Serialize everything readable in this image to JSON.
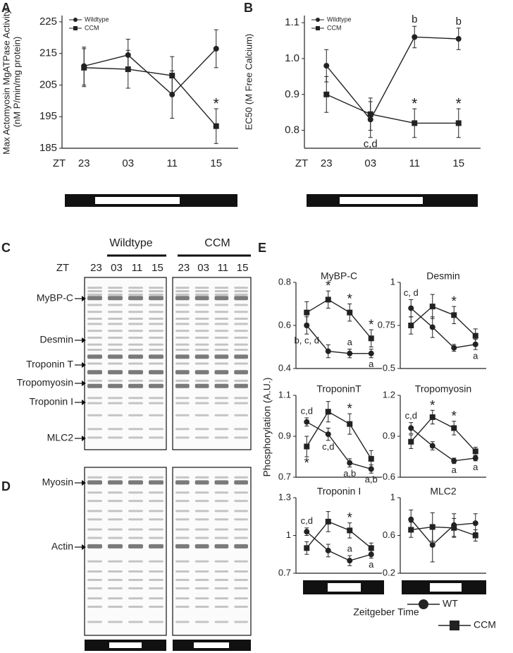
{
  "chart_data": [
    {
      "type": "line",
      "panel": "A",
      "ylabel": [
        "Max Actomyosin MgATPase Activity",
        "(nM P/min/mg protein)"
      ],
      "xlabel": "ZT",
      "categories": [
        "23",
        "03",
        "11",
        "15"
      ],
      "color": "#222222",
      "ylim": [
        185,
        227
      ],
      "yticks": [
        185,
        195,
        205,
        215,
        225
      ],
      "series": [
        {
          "name": "Wildtype",
          "marker": "circle",
          "values": [
            211,
            214.5,
            202,
            216.5
          ],
          "errors": [
            6,
            5,
            7.5,
            6
          ]
        },
        {
          "name": "CCM",
          "marker": "square",
          "values": [
            210.5,
            210,
            208,
            192
          ],
          "errors": [
            6,
            6,
            6,
            5.5
          ]
        }
      ],
      "annotations": [
        {
          "text": "*",
          "series": 1,
          "index": 3,
          "side": "above"
        }
      ]
    },
    {
      "type": "line",
      "panel": "B",
      "ylabel": [
        "EC50 (M Free Calcium)"
      ],
      "xlabel": "ZT",
      "categories": [
        "23",
        "03",
        "11",
        "15"
      ],
      "color": "#222222",
      "ylim": [
        0.75,
        1.12
      ],
      "yticks": [
        0.8,
        0.9,
        {
          "value": 1.0,
          "label": "1.0"
        },
        1.1
      ],
      "series": [
        {
          "name": "Wildtype",
          "marker": "circle",
          "values": [
            0.98,
            0.83,
            1.06,
            1.055
          ],
          "errors": [
            0.045,
            0.05,
            0.03,
            0.03
          ]
        },
        {
          "name": "CCM",
          "marker": "square",
          "values": [
            0.9,
            0.845,
            0.82,
            0.82
          ],
          "errors": [
            0.05,
            0.045,
            0.04,
            0.04
          ]
        }
      ],
      "annotations": [
        {
          "text": "b",
          "series": 0,
          "index": 2,
          "side": "above"
        },
        {
          "text": "b",
          "series": 0,
          "index": 3,
          "side": "above"
        },
        {
          "text": "*",
          "series": 1,
          "index": 2,
          "side": "above"
        },
        {
          "text": "*",
          "series": 1,
          "index": 3,
          "side": "above"
        },
        {
          "text": "c,d",
          "series": 0,
          "index": 1,
          "side": "below"
        }
      ]
    },
    {
      "type": "small-multiples",
      "panel": "E",
      "ylabel": "Phosphorylation (A.U.)",
      "xlabel": "Zeitgeber Time",
      "color": "#222222",
      "series_names": [
        "WT",
        "CCM"
      ],
      "markers": [
        "circle",
        "square"
      ],
      "plots": [
        {
          "title": "MyBP-C",
          "ylim": [
            0.4,
            0.8
          ],
          "yticks": [
            0.4,
            0.6,
            0.8
          ],
          "series": [
            {
              "values": [
                0.6,
                0.48,
                0.47,
                0.47
              ],
              "errors": [
                0.04,
                0.03,
                0.02,
                0.02
              ]
            },
            {
              "values": [
                0.66,
                0.72,
                0.66,
                0.54
              ],
              "errors": [
                0.05,
                0.04,
                0.04,
                0.04
              ]
            }
          ],
          "annotations": [
            {
              "text": "b, c, d",
              "series": 0,
              "index": 0,
              "side": "below"
            },
            {
              "text": "*",
              "series": 1,
              "index": 1,
              "side": "above"
            },
            {
              "text": "*",
              "series": 1,
              "index": 2,
              "side": "above"
            },
            {
              "text": "*",
              "series": 1,
              "index": 3,
              "side": "above"
            },
            {
              "text": "a",
              "series": 0,
              "index": 2,
              "side": "above"
            },
            {
              "text": "a",
              "series": 0,
              "index": 3,
              "side": "below"
            }
          ]
        },
        {
          "title": "Desmin",
          "ylim": [
            0.5,
            1
          ],
          "yticks": [
            0.5,
            0.75,
            1
          ],
          "series": [
            {
              "values": [
                0.85,
                0.74,
                0.62,
                0.64
              ],
              "errors": [
                0.05,
                0.06,
                0.02,
                0.03
              ]
            },
            {
              "values": [
                0.75,
                0.86,
                0.81,
                0.69
              ],
              "errors": [
                0.05,
                0.07,
                0.05,
                0.04
              ]
            }
          ],
          "annotations": [
            {
              "text": "c, d",
              "series": 0,
              "index": 0,
              "side": "above"
            },
            {
              "text": "*",
              "series": 1,
              "index": 2,
              "side": "above"
            },
            {
              "text": "a",
              "series": 0,
              "index": 3,
              "side": "below"
            }
          ]
        },
        {
          "title": "TroponinT",
          "ylim": [
            0.7,
            1.1
          ],
          "yticks": [
            0.7,
            0.9,
            1.1
          ],
          "series": [
            {
              "values": [
                0.97,
                0.91,
                0.77,
                0.74
              ],
              "errors": [
                0.02,
                0.03,
                0.02,
                0.02
              ]
            },
            {
              "values": [
                0.85,
                1.02,
                0.96,
                0.79
              ],
              "errors": [
                0.05,
                0.05,
                0.05,
                0.04
              ]
            }
          ],
          "annotations": [
            {
              "text": "c,d",
              "series": 0,
              "index": 0,
              "side": "above"
            },
            {
              "text": "*",
              "series": 1,
              "index": 0,
              "side": "below"
            },
            {
              "text": "c,d",
              "series": 0,
              "index": 1,
              "side": "below"
            },
            {
              "text": "*",
              "series": 1,
              "index": 2,
              "side": "above"
            },
            {
              "text": "a,b",
              "series": 0,
              "index": 2,
              "side": "below"
            },
            {
              "text": "a,b",
              "series": 0,
              "index": 3,
              "side": "below"
            }
          ]
        },
        {
          "title": "Tropomyosin",
          "ylim": [
            0.6,
            1.2
          ],
          "yticks": [
            0.6,
            0.9,
            1.2
          ],
          "series": [
            {
              "values": [
                0.96,
                0.83,
                0.72,
                0.74
              ],
              "errors": [
                0.04,
                0.03,
                0.02,
                0.02
              ]
            },
            {
              "values": [
                0.86,
                1.04,
                0.96,
                0.79
              ],
              "errors": [
                0.05,
                0.05,
                0.05,
                0.03
              ]
            }
          ],
          "annotations": [
            {
              "text": "c,d",
              "series": 0,
              "index": 0,
              "side": "above"
            },
            {
              "text": "*",
              "series": 1,
              "index": 1,
              "side": "above"
            },
            {
              "text": "*",
              "series": 1,
              "index": 2,
              "side": "above"
            },
            {
              "text": "a",
              "series": 0,
              "index": 2,
              "side": "below"
            },
            {
              "text": "a",
              "series": 0,
              "index": 3,
              "side": "below"
            }
          ]
        },
        {
          "title": "Troponin I",
          "ylim": [
            0.7,
            1.3
          ],
          "yticks": [
            0.7,
            1,
            1.3
          ],
          "series": [
            {
              "values": [
                1.03,
                0.88,
                0.8,
                0.85
              ],
              "errors": [
                0.03,
                0.05,
                0.04,
                0.03
              ]
            },
            {
              "values": [
                0.9,
                1.11,
                1.04,
                0.9
              ],
              "errors": [
                0.05,
                0.08,
                0.06,
                0.04
              ]
            }
          ],
          "annotations": [
            {
              "text": "c,d",
              "series": 0,
              "index": 0,
              "side": "above"
            },
            {
              "text": "*",
              "series": 1,
              "index": 2,
              "side": "above"
            },
            {
              "text": "a",
              "series": 0,
              "index": 2,
              "side": "above"
            },
            {
              "text": "a",
              "series": 0,
              "index": 3,
              "side": "below"
            }
          ]
        },
        {
          "title": "MLC2",
          "ylim": [
            0.2,
            1
          ],
          "yticks": [
            0.2,
            0.6,
            1
          ],
          "series": [
            {
              "values": [
                0.77,
                0.5,
                0.71,
                0.73
              ],
              "errors": [
                0.1,
                0.18,
                0.12,
                0.1
              ]
            },
            {
              "values": [
                0.66,
                0.69,
                0.68,
                0.6
              ],
              "errors": [
                0.08,
                0.15,
                0.1,
                0.06
              ]
            }
          ],
          "annotations": []
        }
      ]
    }
  ],
  "gels": [
    {
      "panel": "C",
      "lane_axis": "ZT",
      "groups": [
        {
          "name": "Wildtype",
          "lanes": [
            "23",
            "03",
            "11",
            "15"
          ]
        },
        {
          "name": "CCM",
          "lanes": [
            "23",
            "03",
            "11",
            "15"
          ]
        }
      ],
      "bands": [
        "MyBP-C",
        "Desmin",
        "Troponin T",
        "Tropomyosin",
        "Troponin I",
        "MLC2"
      ]
    },
    {
      "panel": "D",
      "bands": [
        "Myosin",
        "Actin"
      ]
    }
  ]
}
